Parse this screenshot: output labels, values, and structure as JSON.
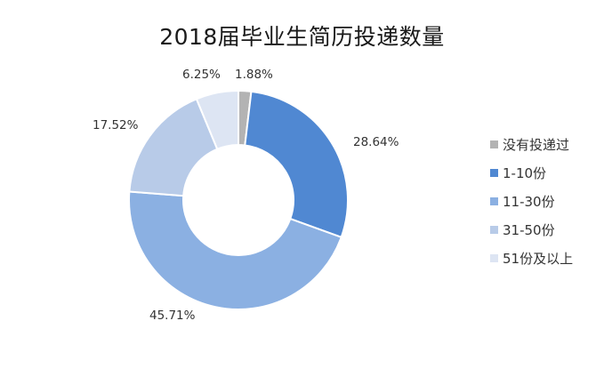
{
  "chart_data": {
    "type": "pie",
    "variant": "donut",
    "title": "2018届毕业生简历投递数量",
    "categories": [
      "没有投递过",
      "1-10份",
      "11-30份",
      "31-50份",
      "51份及以上"
    ],
    "values": [
      1.88,
      28.64,
      45.71,
      17.52,
      6.25
    ],
    "value_labels": [
      "1.88%",
      "28.64%",
      "45.71%",
      "17.52%",
      "6.25%"
    ],
    "colors": [
      "#b3b3b3",
      "#5088d2",
      "#8bb0e2",
      "#b8cbe8",
      "#dde5f3"
    ],
    "start_angle": "12 o'clock",
    "direction": "clockwise",
    "legend": {
      "position": "right",
      "entries": [
        "没有投递过",
        "1-10份",
        "11-30份",
        "31-50份",
        "51份及以上"
      ]
    }
  }
}
